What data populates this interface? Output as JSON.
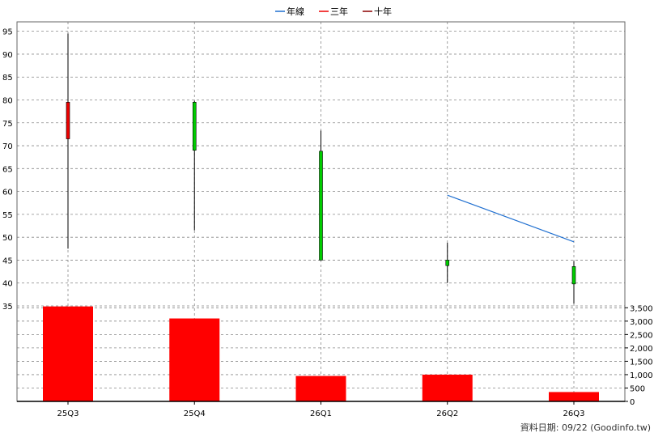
{
  "legend": [
    {
      "label": "年線",
      "color": "#1f6fd0"
    },
    {
      "label": "三年",
      "color": "#ee0000"
    },
    {
      "label": "十年",
      "color": "#8b0000"
    }
  ],
  "footer": "資料日期: 09/22  (Goodinfo.tw)",
  "chart_data": {
    "type": "candlestick+bar",
    "categories": [
      "25Q3",
      "25Q4",
      "26Q1",
      "26Q2",
      "26Q3"
    ],
    "price_axis": {
      "ylim": [
        35,
        96
      ],
      "ticks": [
        35,
        40,
        45,
        50,
        55,
        60,
        65,
        70,
        75,
        80,
        85,
        90,
        95
      ]
    },
    "candles": [
      {
        "open": 71.5,
        "close": 79.5,
        "high": 94.5,
        "low": 47.5,
        "color": "#ee0000"
      },
      {
        "open": 79.5,
        "close": 69.0,
        "high": 79.8,
        "low": 51.5,
        "color": "#00cc00"
      },
      {
        "open": 68.8,
        "close": 45.0,
        "high": 73.3,
        "low": 45.0,
        "color": "#00cc00"
      },
      {
        "open": 45.0,
        "close": 43.8,
        "high": 48.8,
        "low": 40.0,
        "color": "#00cc00"
      },
      {
        "open": 43.6,
        "close": 39.8,
        "high": 44.8,
        "low": 35.5,
        "color": "#00cc00"
      }
    ],
    "annual_line": {
      "name": "年線",
      "points": [
        [
          "26Q2",
          59.2
        ],
        [
          "26Q3",
          49.0
        ]
      ],
      "color": "#1f6fd0"
    },
    "volume_axis": {
      "ylim": [
        0,
        3600
      ],
      "ticks": [
        0,
        500,
        1000,
        1500,
        2000,
        2500,
        3000,
        3500
      ],
      "tick_labels": [
        "0",
        "500",
        "1,000",
        "1,500",
        "2,000",
        "2,500",
        "3,000",
        "3,500"
      ]
    },
    "volume": [
      3550,
      3100,
      950,
      1000,
      350
    ],
    "volume_color": "#ff0000",
    "grid": true
  }
}
